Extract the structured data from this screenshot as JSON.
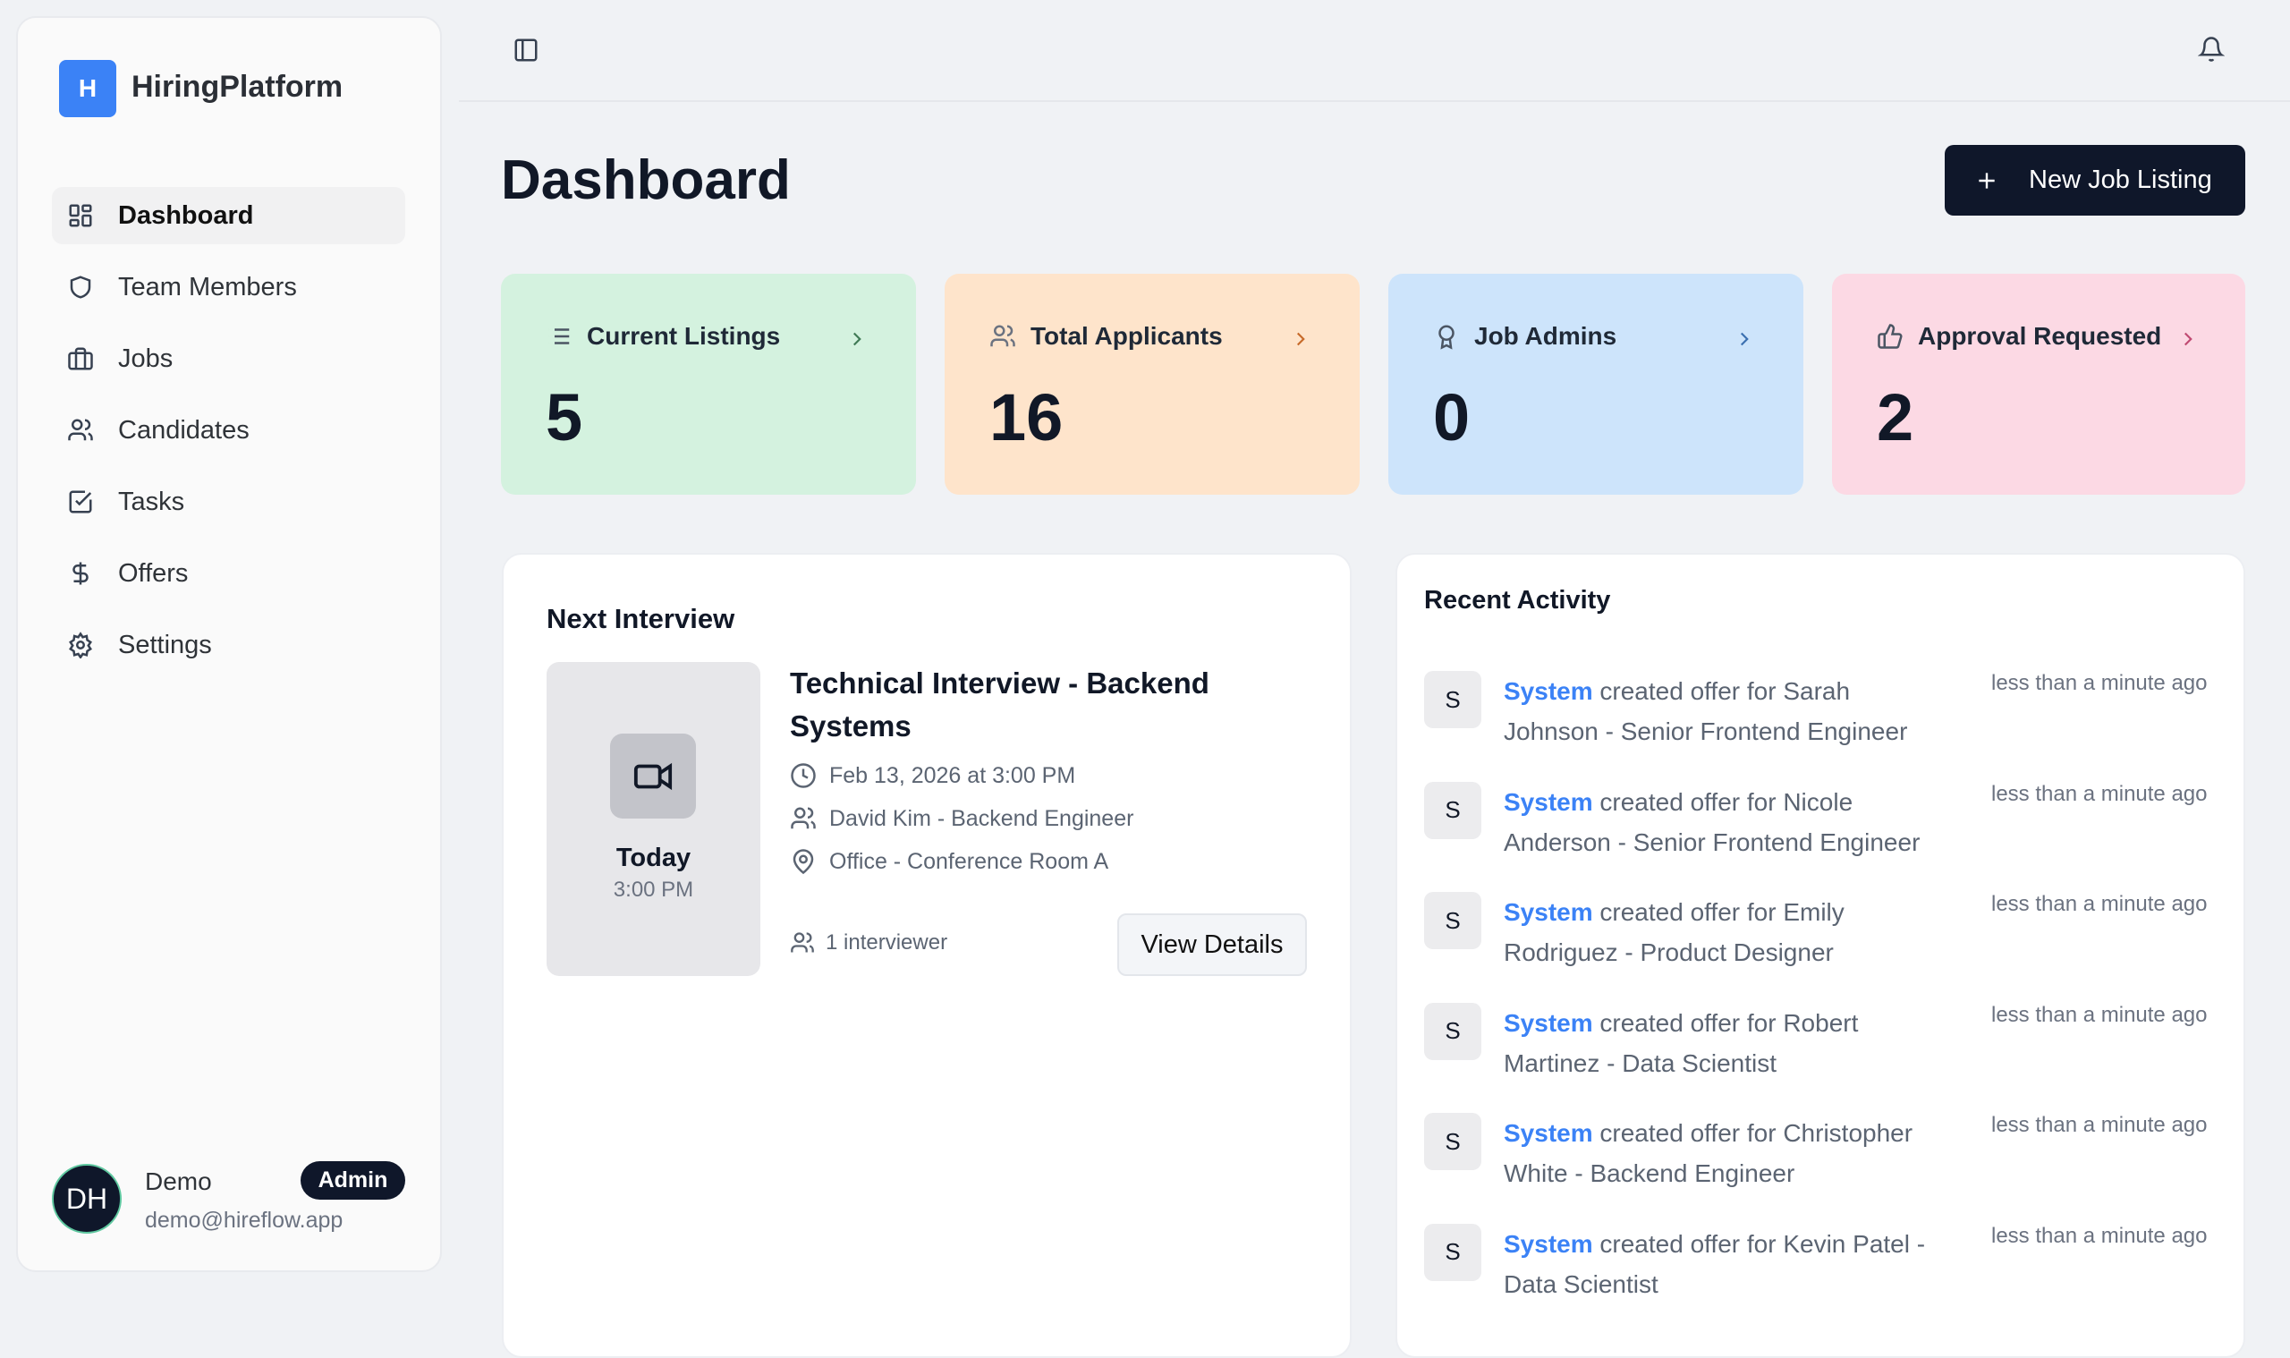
{
  "sidebar": {
    "logo_letter": "H",
    "brand": "HiringPlatform",
    "items": [
      {
        "label": "Dashboard",
        "icon": "layout-dashboard-icon",
        "active": true
      },
      {
        "label": "Team Members",
        "icon": "shield-icon"
      },
      {
        "label": "Jobs",
        "icon": "briefcase-icon"
      },
      {
        "label": "Candidates",
        "icon": "users-icon"
      },
      {
        "label": "Tasks",
        "icon": "square-check-icon"
      },
      {
        "label": "Offers",
        "icon": "dollar-icon"
      },
      {
        "label": "Settings",
        "icon": "gear-icon"
      }
    ],
    "user": {
      "initials": "DH",
      "name": "Demo",
      "email": "demo@hireflow.app",
      "role": "Admin"
    }
  },
  "header": {
    "title": "Dashboard",
    "new_button": "New Job Listing"
  },
  "stats": [
    {
      "label": "Current Listings",
      "value": "5",
      "bg": "#d4f2df",
      "accent": "#3f7a55"
    },
    {
      "label": "Total Applicants",
      "value": "16",
      "bg": "#fee4cb",
      "accent": "#c76a2a"
    },
    {
      "label": "Job Admins",
      "value": "0",
      "bg": "#cde4fb",
      "accent": "#3b6fb0"
    },
    {
      "label": "Approval Requested",
      "value": "2",
      "bg": "#fcd9e4",
      "accent": "#c04a72"
    }
  ],
  "next_interview": {
    "heading": "Next Interview",
    "day": "Today",
    "time": "3:00 PM",
    "title": "Technical Interview - Backend Systems",
    "datetime": "Feb 13, 2026 at 3:00 PM",
    "candidate": "David Kim - Backend Engineer",
    "location": "Office - Conference Room A",
    "interviewers": "1 interviewer",
    "view_button": "View Details"
  },
  "recent_activity": {
    "heading": "Recent Activity",
    "items": [
      {
        "avatar": "S",
        "actor": "System",
        "text": " created offer for Sarah Johnson - Senior Frontend Engineer",
        "time": "less than a minute ago"
      },
      {
        "avatar": "S",
        "actor": "System",
        "text": " created offer for Nicole Anderson - Senior Frontend Engineer",
        "time": "less than a minute ago"
      },
      {
        "avatar": "S",
        "actor": "System",
        "text": " created offer for Emily Rodriguez - Product Designer",
        "time": "less than a minute ago"
      },
      {
        "avatar": "S",
        "actor": "System",
        "text": " created offer for Robert Martinez - Data Scientist",
        "time": "less than a minute ago"
      },
      {
        "avatar": "S",
        "actor": "System",
        "text": " created offer for Christopher White - Backend Engineer",
        "time": "less than a minute ago"
      },
      {
        "avatar": "S",
        "actor": "System",
        "text": " created offer for Kevin Patel - Data Scientist",
        "time": "less than a minute ago"
      }
    ]
  }
}
